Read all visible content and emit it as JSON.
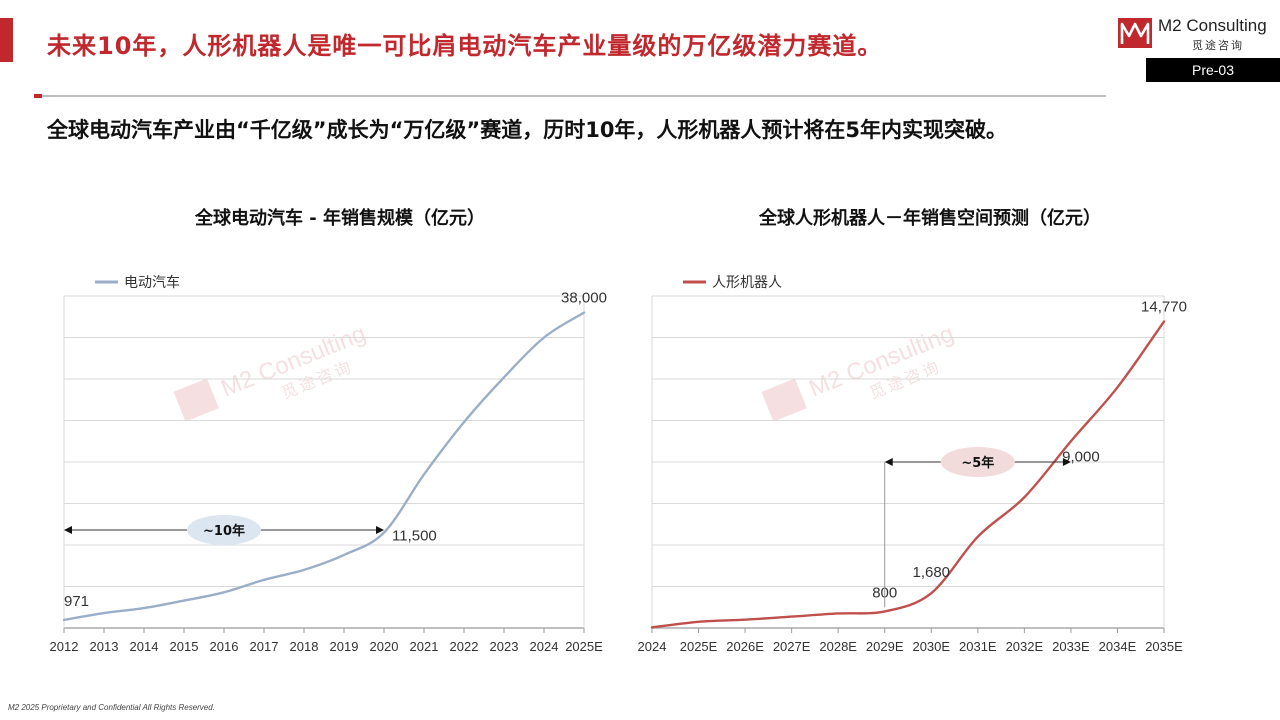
{
  "header": {
    "title": "未来10年，人形机器人是唯一可比肩电动汽车产业量级的万亿级潜力赛道。",
    "page_tag": "Pre-03",
    "accent_color": "#c0282d"
  },
  "logo": {
    "name": "M2 Consulting",
    "subtitle": "觅途咨询"
  },
  "subtitle": "全球电动汽车产业由“千亿级”成长为“万亿级”赛道，历时10年，人形机器人预计将在5年内实现突破。",
  "footer": "M2  2025 Proprietary and Confidential All Rights Reserved.",
  "chart_data": [
    {
      "type": "line",
      "title": "全球电动汽车 - 年销售规模（亿元）",
      "categories": [
        "2012",
        "2013",
        "2014",
        "2015",
        "2016",
        "2017",
        "2018",
        "2019",
        "2020",
        "2021",
        "2022",
        "2023",
        "2024",
        "2025E"
      ],
      "series": [
        {
          "name": "电动汽车",
          "color": "#9aaec8",
          "values": [
            971,
            1800,
            2400,
            3300,
            4300,
            5800,
            7000,
            8800,
            11500,
            18500,
            24800,
            30200,
            35000,
            38000
          ]
        }
      ],
      "ylim": [
        0,
        40000
      ],
      "grid": true,
      "legend": "top-left",
      "data_labels": [
        {
          "index": 0,
          "text": "971"
        },
        {
          "index": 8,
          "text": "11,500"
        },
        {
          "index": 13,
          "text": "38,000"
        }
      ],
      "annotation": {
        "text": "~10年",
        "from": "2012",
        "to": "2020",
        "color": "#dce6f1"
      }
    },
    {
      "type": "line",
      "title": "全球人形机器人－年销售空间预测（亿元）",
      "categories": [
        "2024",
        "2025E",
        "2026E",
        "2027E",
        "2028E",
        "2029E",
        "2030E",
        "2031E",
        "2032E",
        "2033E",
        "2034E",
        "2035E"
      ],
      "series": [
        {
          "name": "人形机器人",
          "color": "#c0504d",
          "values": [
            30,
            300,
            400,
            550,
            700,
            800,
            1680,
            4400,
            6300,
            9000,
            11600,
            14770
          ]
        }
      ],
      "ylim": [
        0,
        16000
      ],
      "grid": true,
      "legend": "top-left",
      "data_labels": [
        {
          "index": 5,
          "text": "800"
        },
        {
          "index": 6,
          "text": "1,680"
        },
        {
          "index": 9,
          "text": "9,000"
        },
        {
          "index": 11,
          "text": "14,770"
        }
      ],
      "annotation": {
        "text": "~5年",
        "from": "2029E",
        "to": "2033E",
        "color": "#f2dcdb"
      },
      "watermark": {
        "name": "M2 Consulting",
        "subtitle": "觅途咨询"
      }
    }
  ]
}
